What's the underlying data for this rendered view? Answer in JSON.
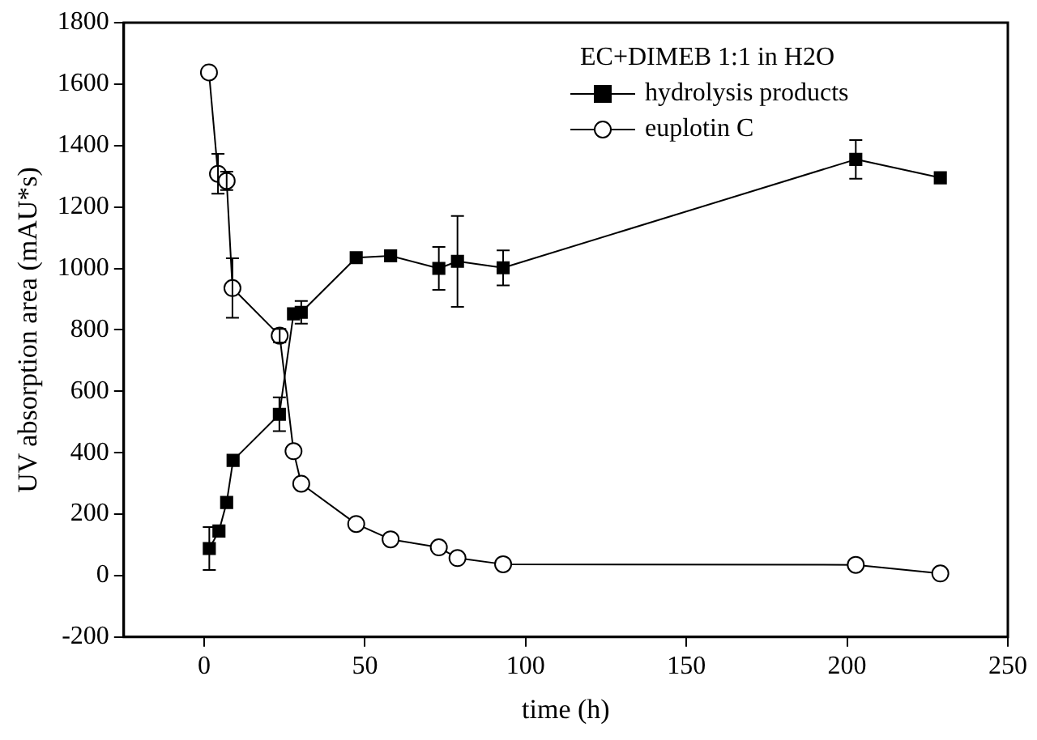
{
  "chart_data": {
    "type": "line",
    "xlabel": "time (h)",
    "ylabel": "UV absorption area (mAU*s)",
    "legend_title": "EC+DIMEB 1:1 in H2O",
    "legend": "top right",
    "grid": false,
    "line_style": "solid",
    "xlim": [
      -25,
      250
    ],
    "xticks": [
      0,
      50,
      100,
      150,
      200,
      250
    ],
    "ylim": [
      -200,
      1800
    ],
    "yticks": [
      -200,
      0,
      200,
      400,
      600,
      800,
      1000,
      1200,
      1400,
      1600,
      1800
    ],
    "series": [
      {
        "name": "hydrolysis products",
        "color": "#000000",
        "marker": "square",
        "x": [
          1.6,
          4.6,
          7,
          9,
          23.4,
          27.8,
          30.2,
          47.3,
          58,
          73,
          78.8,
          93,
          202.7,
          229
        ],
        "values": [
          88,
          145,
          238,
          375,
          525,
          852,
          857,
          1035,
          1041,
          1000,
          1023,
          1002,
          1355,
          1295
        ],
        "errors": [
          70,
          null,
          null,
          null,
          55,
          null,
          37,
          null,
          null,
          70,
          148,
          57,
          63,
          null
        ]
      },
      {
        "name": "euplotin C",
        "color": "#000000",
        "marker": "circle",
        "x": [
          1.5,
          4.3,
          7,
          8.8,
          23.5,
          27.8,
          30.2,
          47.3,
          58,
          73,
          78.8,
          93,
          202.7,
          229
        ],
        "values": [
          1638,
          1308,
          1285,
          936,
          781,
          405,
          299,
          168,
          118,
          92,
          57,
          37,
          35,
          7
        ],
        "errors": [
          null,
          65,
          30,
          97,
          22,
          null,
          null,
          null,
          null,
          null,
          null,
          null,
          null,
          null
        ]
      }
    ]
  }
}
